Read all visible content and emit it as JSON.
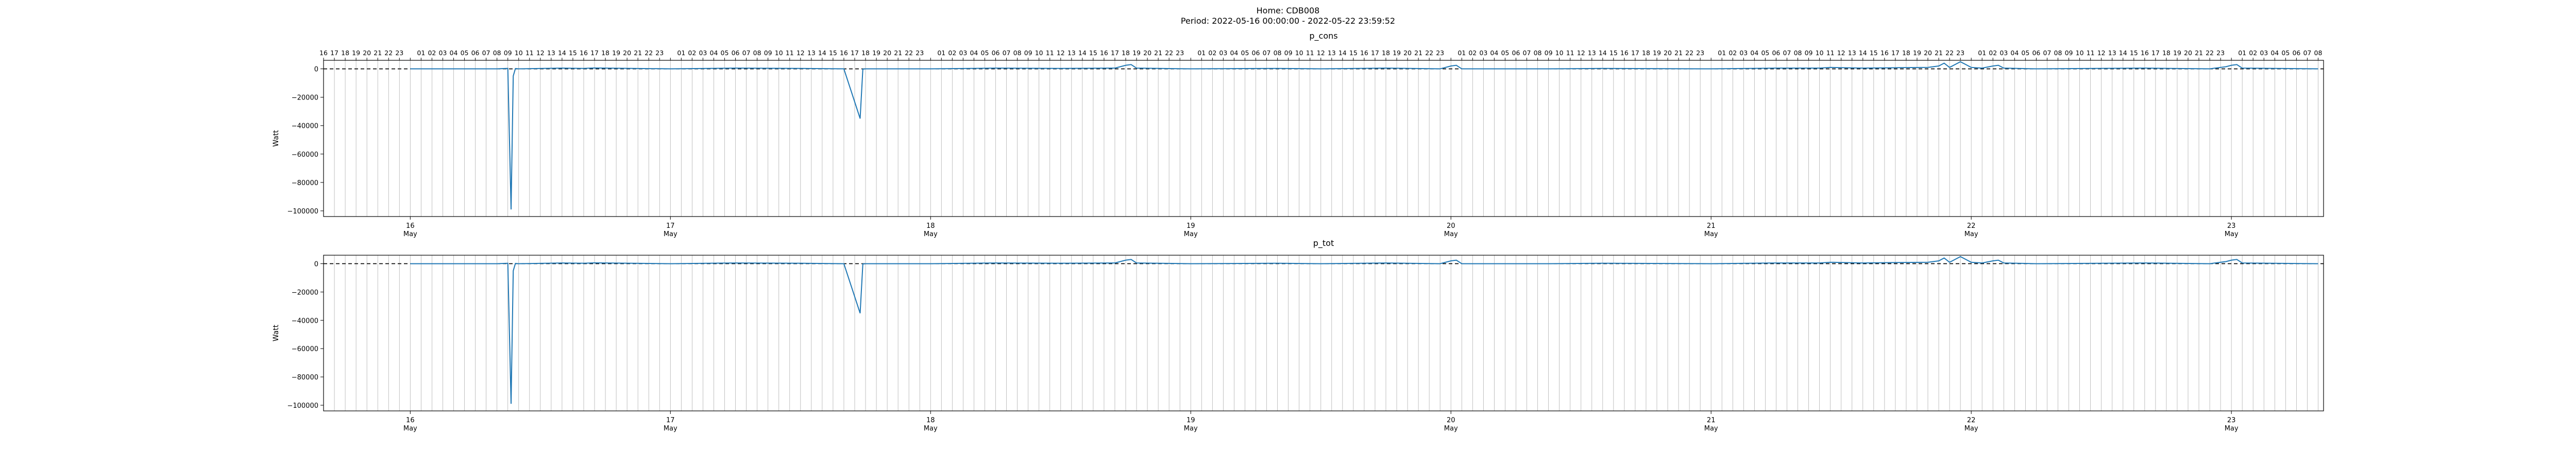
{
  "header": {
    "home": "Home: CDB008",
    "period": "Period: 2022-05-16 00:00:00 - 2022-05-22 23:59:52"
  },
  "colors": {
    "series": "#1f77b4",
    "grid": "#b0b0b0",
    "zero_line": "#000000"
  },
  "chart_data": [
    {
      "type": "line",
      "title": "p_cons",
      "ylabel": "Watt",
      "ylim": [
        -104000,
        6000
      ],
      "yticks": [
        0,
        -20000,
        -40000,
        -60000,
        -80000,
        -100000
      ],
      "ytick_labels": [
        "0",
        "−20000",
        "−40000",
        "−60000",
        "−80000",
        "−100000"
      ],
      "xlim": [
        -8,
        176.5
      ],
      "x_unit": "hours since 2022-05-16 00:00",
      "grid": "vertical, hourly",
      "reference_line": {
        "y": 0,
        "style": "dashed"
      },
      "top_axis_hours": [
        "16",
        "17",
        "18",
        "19",
        "20",
        "21",
        "22",
        "23",
        "",
        "01",
        "02",
        "03",
        "04",
        "05",
        "06",
        "07",
        "08",
        "09",
        "10",
        "11",
        "12",
        "13",
        "14",
        "15",
        "16",
        "17",
        "18",
        "19",
        "20",
        "21",
        "22",
        "23",
        "",
        "01",
        "02",
        "03",
        "04",
        "05",
        "06",
        "07",
        "08",
        "09",
        "10",
        "11",
        "12",
        "13",
        "14",
        "15",
        "16",
        "17",
        "18",
        "19",
        "20",
        "21",
        "22",
        "23",
        "",
        "01",
        "02",
        "03",
        "04",
        "05",
        "06",
        "07",
        "08",
        "09",
        "10",
        "11",
        "12",
        "13",
        "14",
        "15",
        "16",
        "17",
        "18",
        "19",
        "20",
        "21",
        "22",
        "23",
        "",
        "01",
        "02",
        "03",
        "04",
        "05",
        "06",
        "07",
        "08",
        "09",
        "10",
        "11",
        "12",
        "13",
        "14",
        "15",
        "16",
        "17",
        "18",
        "19",
        "20",
        "21",
        "22",
        "23",
        "",
        "01",
        "02",
        "03",
        "04",
        "05",
        "06",
        "07",
        "08",
        "09",
        "10",
        "11",
        "12",
        "13",
        "14",
        "15",
        "16",
        "17",
        "18",
        "19",
        "20",
        "21",
        "22",
        "23",
        "",
        "01",
        "02",
        "03",
        "04",
        "05",
        "06",
        "07",
        "08",
        "09",
        "10",
        "11",
        "12",
        "13",
        "14",
        "15",
        "16",
        "17",
        "18",
        "19",
        "20",
        "21",
        "22",
        "23",
        "",
        "01",
        "02",
        "03",
        "04",
        "05",
        "06",
        "07",
        "08",
        "09",
        "10",
        "11",
        "12",
        "13",
        "14",
        "15",
        "16",
        "17",
        "18",
        "19",
        "20",
        "21",
        "22",
        "23",
        "",
        "01",
        "02",
        "03",
        "04",
        "05",
        "06",
        "07",
        "08"
      ],
      "bottom_axis_days": [
        {
          "day": "16",
          "month": "May"
        },
        {
          "day": "17",
          "month": "May"
        },
        {
          "day": "18",
          "month": "May"
        },
        {
          "day": "19",
          "month": "May"
        },
        {
          "day": "20",
          "month": "May"
        },
        {
          "day": "21",
          "month": "May"
        },
        {
          "day": "22",
          "month": "May"
        },
        {
          "day": "23",
          "month": "May"
        }
      ],
      "series": [
        {
          "x": [
            0,
            8,
            9,
            9.3,
            9.5,
            9.7,
            10,
            14,
            16,
            17,
            24,
            30,
            36,
            40,
            41.5,
            41.75,
            42,
            48,
            54,
            60,
            65,
            66,
            66.5,
            67,
            72,
            80,
            84,
            90,
            95,
            96,
            96.5,
            97,
            105,
            110,
            120,
            126,
            130,
            131,
            134,
            137,
            140,
            141,
            141.5,
            142,
            143,
            144,
            145,
            146,
            146.5,
            147,
            150,
            160,
            166,
            167.5,
            168,
            168.5,
            169,
            176
          ],
          "y": [
            0,
            0,
            300,
            -99000,
            -5000,
            200,
            0,
            500,
            300,
            600,
            0,
            500,
            300,
            0,
            -35000,
            -200,
            0,
            0,
            500,
            300,
            500,
            2500,
            3000,
            500,
            0,
            300,
            0,
            500,
            0,
            2000,
            2500,
            0,
            0,
            300,
            0,
            500,
            500,
            1000,
            500,
            800,
            1000,
            2000,
            4000,
            1000,
            5000,
            1000,
            500,
            2000,
            2500,
            500,
            0,
            500,
            0,
            1500,
            2500,
            3000,
            500,
            0
          ]
        }
      ]
    },
    {
      "type": "line",
      "title": "p_tot",
      "ylabel": "Watt",
      "ylim": [
        -104000,
        6000
      ],
      "yticks": [
        0,
        -20000,
        -40000,
        -60000,
        -80000,
        -100000
      ],
      "ytick_labels": [
        "0",
        "−20000",
        "−40000",
        "−60000",
        "−80000",
        "−100000"
      ],
      "xlim": [
        -8,
        176.5
      ],
      "x_unit": "hours since 2022-05-16 00:00",
      "grid": "vertical, hourly",
      "reference_line": {
        "y": 0,
        "style": "dashed"
      },
      "bottom_axis_days": [
        {
          "day": "16",
          "month": "May"
        },
        {
          "day": "17",
          "month": "May"
        },
        {
          "day": "18",
          "month": "May"
        },
        {
          "day": "19",
          "month": "May"
        },
        {
          "day": "20",
          "month": "May"
        },
        {
          "day": "21",
          "month": "May"
        },
        {
          "day": "22",
          "month": "May"
        },
        {
          "day": "23",
          "month": "May"
        }
      ],
      "series": [
        {
          "x": [
            0,
            8,
            9,
            9.3,
            9.5,
            9.7,
            10,
            14,
            16,
            17,
            24,
            30,
            36,
            40,
            41.5,
            41.75,
            42,
            48,
            54,
            60,
            65,
            66,
            66.5,
            67,
            72,
            80,
            84,
            90,
            95,
            96,
            96.5,
            97,
            105,
            110,
            120,
            126,
            130,
            131,
            134,
            137,
            140,
            141,
            141.5,
            142,
            143,
            144,
            145,
            146,
            146.5,
            147,
            150,
            160,
            166,
            167.5,
            168,
            168.5,
            169,
            176
          ],
          "y": [
            0,
            0,
            300,
            -99000,
            -5000,
            200,
            0,
            500,
            300,
            600,
            0,
            500,
            300,
            0,
            -35000,
            -200,
            0,
            0,
            500,
            300,
            500,
            2500,
            3000,
            500,
            0,
            300,
            0,
            500,
            0,
            2000,
            2500,
            0,
            0,
            300,
            0,
            500,
            500,
            1000,
            500,
            800,
            1000,
            2000,
            4000,
            1000,
            5000,
            1000,
            500,
            2000,
            2500,
            500,
            0,
            500,
            0,
            1500,
            2500,
            3000,
            500,
            0
          ]
        }
      ]
    }
  ]
}
